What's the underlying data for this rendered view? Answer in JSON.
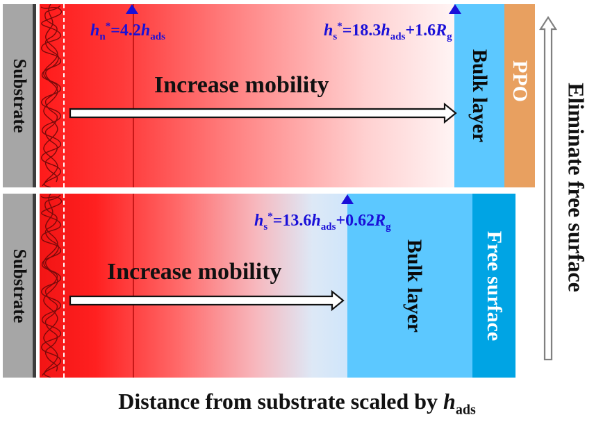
{
  "top_panel": {
    "substrate": "Substrate",
    "mobility": "Increase mobility",
    "bulk": "Bulk layer",
    "ppo": "PPO",
    "hn_label": {
      "sym": "h",
      "sub": "n",
      "sup": "*",
      "eq": "=4.2",
      "h": "h",
      "h_sub": "ads"
    },
    "hs_label": {
      "sym": "h",
      "sub": "s",
      "sup": "*",
      "eq": "=18.3",
      "h": "h",
      "h_sub": "ads",
      "plus": "+1.6",
      "r": "R",
      "r_sub": "g"
    }
  },
  "bottom_panel": {
    "substrate": "Substrate",
    "mobility": "Increase mobility",
    "bulk": "Bulk layer",
    "free": "Free surface",
    "hs_label": {
      "sym": "h",
      "sub": "s",
      "sup": "*",
      "eq": "=13.6",
      "h": "h",
      "h_sub": "ads",
      "plus": "+0.62",
      "r": "R",
      "r_sub": "g"
    }
  },
  "right_label": "Eliminate free surface",
  "caption": {
    "text": "Distance from substrate scaled by ",
    "h": "h",
    "h_sub": "ads"
  },
  "colors": {
    "label_blue": "#1a10d8",
    "bulk": "#5cc8ff",
    "ppo": "#e8a060",
    "free": "#00a4e4",
    "substrate": "#a6a6a6",
    "red": "#ff1a1a"
  }
}
